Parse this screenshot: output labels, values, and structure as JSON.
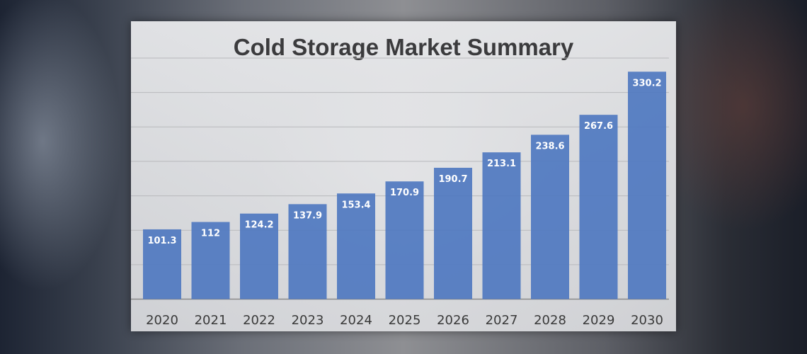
{
  "chart_data": {
    "type": "bar",
    "title": "Cold Storage Market Summary",
    "categories": [
      "2020",
      "2021",
      "2022",
      "2023",
      "2024",
      "2025",
      "2026",
      "2027",
      "2028",
      "2029",
      "2030"
    ],
    "values": [
      101.3,
      112,
      124.2,
      137.9,
      153.4,
      170.9,
      190.7,
      213.1,
      238.6,
      267.6,
      330.2
    ],
    "data_labels": [
      "101.3",
      "112",
      "124.2",
      "137.9",
      "153.4",
      "170.9",
      "190.7",
      "213.1",
      "238.6",
      "267.6",
      "330.2"
    ],
    "xlabel": "",
    "ylabel": "",
    "ylim": [
      0,
      350
    ],
    "grid_step": 50,
    "grid": true,
    "legend": "none",
    "colors": {
      "bar": "#4f78c0",
      "label": "#ffffff",
      "axis_text": "#3a3a3a"
    }
  }
}
